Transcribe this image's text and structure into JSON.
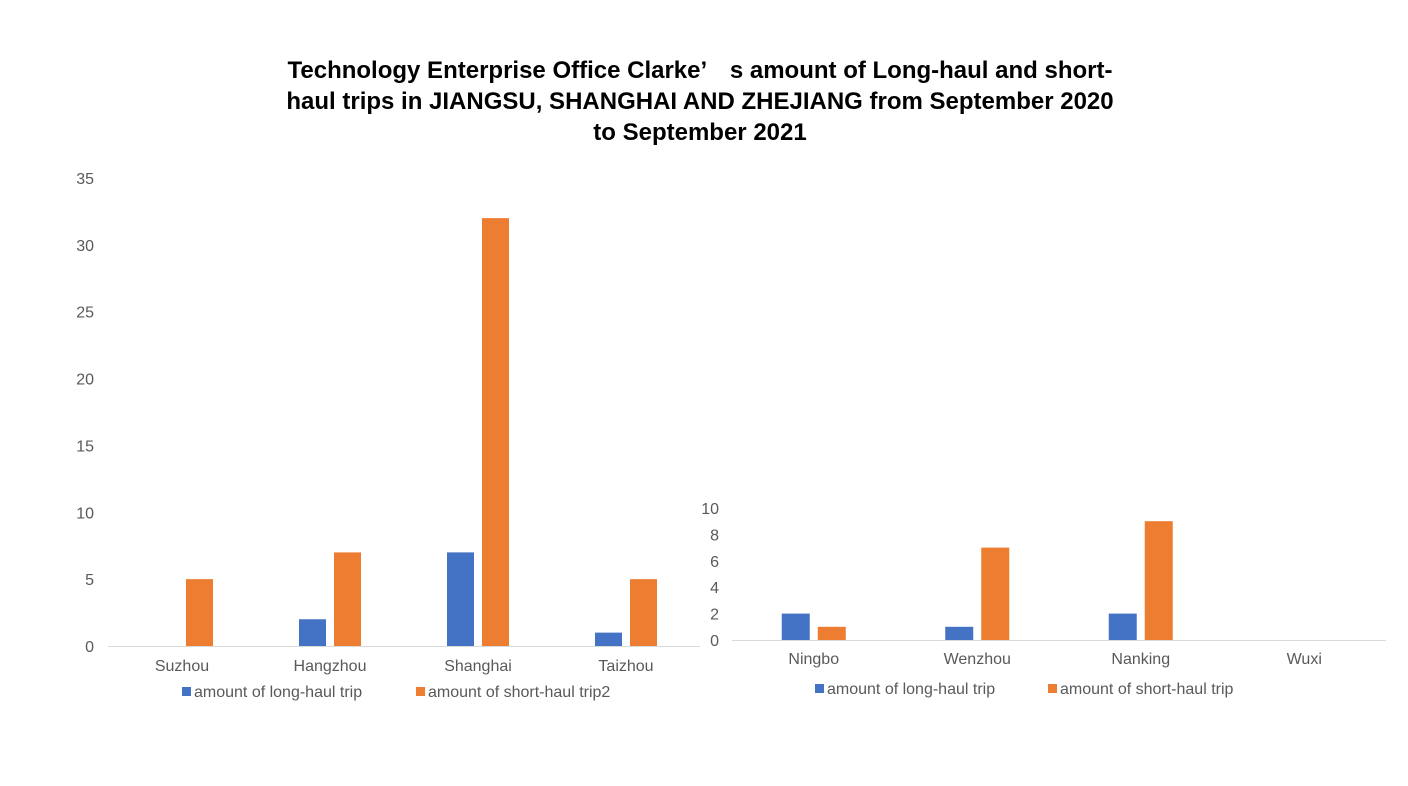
{
  "title_lines": [
    "Technology Enterprise Office Clarke’　s amount of Long-haul and short-",
    "haul trips  in JIANGSU, SHANGHAI AND ZHEJIANG from September 2020",
    "to September 2021"
  ],
  "colors": {
    "long_haul": "#4472C4",
    "short_haul": "#ED7D31",
    "axis": "#D9D9D9",
    "text": "#595959"
  },
  "chart_data": [
    {
      "type": "bar",
      "categories": [
        "Suzhou",
        "Hangzhou",
        "Shanghai",
        "Taizhou"
      ],
      "series": [
        {
          "name": "amount of long-haul trip",
          "values": [
            0,
            2,
            7,
            1
          ]
        },
        {
          "name": "amount of short-haul trip2",
          "values": [
            5,
            7,
            32,
            5
          ]
        }
      ],
      "ylim": [
        0,
        35
      ],
      "yticks": [
        0,
        5,
        10,
        15,
        20,
        25,
        30,
        35
      ],
      "grid": false,
      "legend": "bottom"
    },
    {
      "type": "bar",
      "categories": [
        "Ningbo",
        "Wenzhou",
        "Nanking",
        "Wuxi"
      ],
      "series": [
        {
          "name": "amount of long-haul trip",
          "values": [
            2,
            1,
            2,
            0
          ]
        },
        {
          "name": "amount of short-haul trip",
          "values": [
            1,
            7,
            9,
            0
          ]
        }
      ],
      "ylim": [
        0,
        10
      ],
      "yticks": [
        0,
        2,
        4,
        6,
        8,
        10
      ],
      "grid": false,
      "legend": "bottom"
    }
  ]
}
